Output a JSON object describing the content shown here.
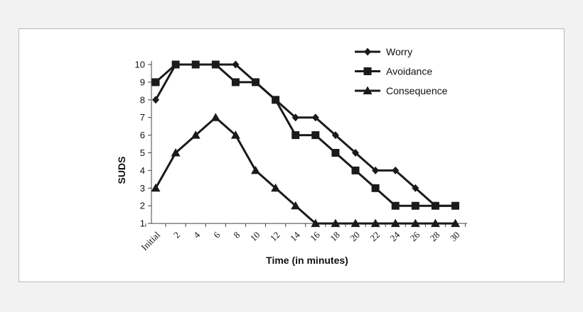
{
  "chart_data": {
    "type": "line",
    "title": "",
    "xlabel": "Time (in minutes)",
    "ylabel": "SUDS",
    "categories": [
      "Initial",
      "2",
      "4",
      "6",
      "8",
      "10",
      "12",
      "14",
      "16",
      "18",
      "20",
      "22",
      "24",
      "26",
      "28",
      "30"
    ],
    "yticks": [
      "1",
      "2",
      "3",
      "4",
      "5",
      "6",
      "7",
      "8",
      "9",
      "10"
    ],
    "ylim": [
      1,
      10
    ],
    "grid": false,
    "legend_position": "top-right",
    "series": [
      {
        "name": "Worry",
        "marker": "diamond",
        "values": [
          8,
          10,
          10,
          10,
          10,
          9,
          8,
          7,
          7,
          6,
          5,
          4,
          4,
          3,
          2,
          2
        ]
      },
      {
        "name": "Avoidance",
        "marker": "square",
        "values": [
          9,
          10,
          10,
          10,
          9,
          9,
          8,
          6,
          6,
          5,
          4,
          3,
          2,
          2,
          2,
          2
        ]
      },
      {
        "name": "Consequence",
        "marker": "triangle",
        "values": [
          3,
          5,
          6,
          7,
          6,
          4,
          3,
          2,
          1,
          1,
          1,
          1,
          1,
          1,
          1,
          1
        ]
      }
    ],
    "colors": {
      "line": "#1a1a1a",
      "background": "#ffffff",
      "frame": "#b9b9b9"
    }
  }
}
